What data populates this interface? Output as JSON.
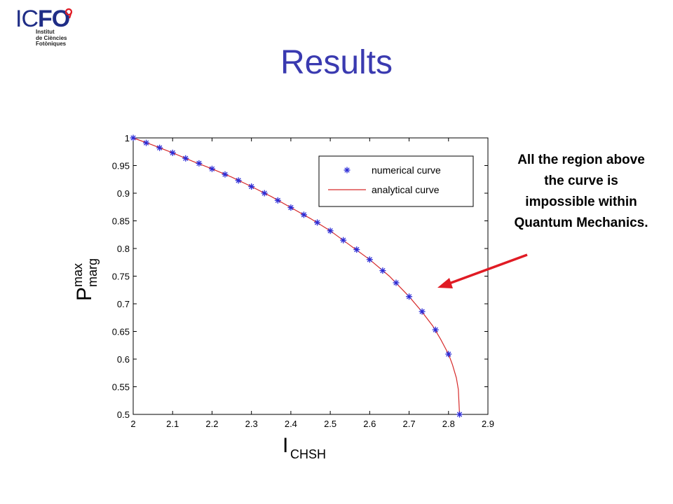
{
  "logo": {
    "brand_thin": "IC",
    "brand_bold": "FO",
    "line1": "Institut",
    "line2": "de Ciències",
    "line3": "Fotòniques",
    "colors": {
      "brand": "#1f2d86",
      "accent": "#e01b24"
    }
  },
  "slide": {
    "title": "Results",
    "annotation": "All the region above the curve is impossible within Quantum Mechanics.",
    "arrow_color": "#e01b24"
  },
  "chart_data": {
    "type": "line",
    "xlabel": {
      "main": "I",
      "sub": "CHSH"
    },
    "ylabel": {
      "main": "P",
      "sup": "max",
      "sub": "marg"
    },
    "xlim": [
      2,
      2.9
    ],
    "ylim": [
      0.5,
      1.0
    ],
    "xticks": [
      "2",
      "2.1",
      "2.2",
      "2.3",
      "2.4",
      "2.5",
      "2.6",
      "2.7",
      "2.8",
      "2.9"
    ],
    "yticks": [
      "0.5",
      "0.55",
      "0.6",
      "0.65",
      "0.7",
      "0.75",
      "0.8",
      "0.85",
      "0.9",
      "0.95",
      "1"
    ],
    "legend": {
      "position": "top-right",
      "numerical": "numerical curve",
      "analytical": "analytical curve"
    },
    "series": [
      {
        "name": "numerical curve",
        "marker": "asterisk",
        "color": "#2b2bd6",
        "x": [
          2.0,
          2.033,
          2.067,
          2.1,
          2.133,
          2.167,
          2.2,
          2.233,
          2.267,
          2.3,
          2.333,
          2.367,
          2.4,
          2.433,
          2.467,
          2.5,
          2.533,
          2.567,
          2.6,
          2.633,
          2.667,
          2.7,
          2.733,
          2.767,
          2.8,
          2.828
        ],
        "y": [
          1.0,
          0.991,
          0.982,
          0.973,
          0.963,
          0.954,
          0.944,
          0.934,
          0.923,
          0.912,
          0.9,
          0.887,
          0.874,
          0.861,
          0.847,
          0.832,
          0.815,
          0.798,
          0.78,
          0.76,
          0.738,
          0.713,
          0.686,
          0.653,
          0.609,
          0.5
        ]
      },
      {
        "name": "analytical curve",
        "color": "#d62a2a",
        "x": [
          2.0,
          2.05,
          2.1,
          2.15,
          2.2,
          2.25,
          2.3,
          2.35,
          2.4,
          2.45,
          2.5,
          2.55,
          2.6,
          2.65,
          2.7,
          2.73,
          2.76,
          2.78,
          2.8,
          2.81,
          2.82,
          2.825,
          2.828
        ],
        "y": [
          1.0,
          0.987,
          0.973,
          0.958,
          0.944,
          0.929,
          0.912,
          0.894,
          0.874,
          0.854,
          0.832,
          0.806,
          0.78,
          0.75,
          0.713,
          0.688,
          0.66,
          0.636,
          0.609,
          0.59,
          0.566,
          0.545,
          0.5
        ]
      }
    ]
  }
}
